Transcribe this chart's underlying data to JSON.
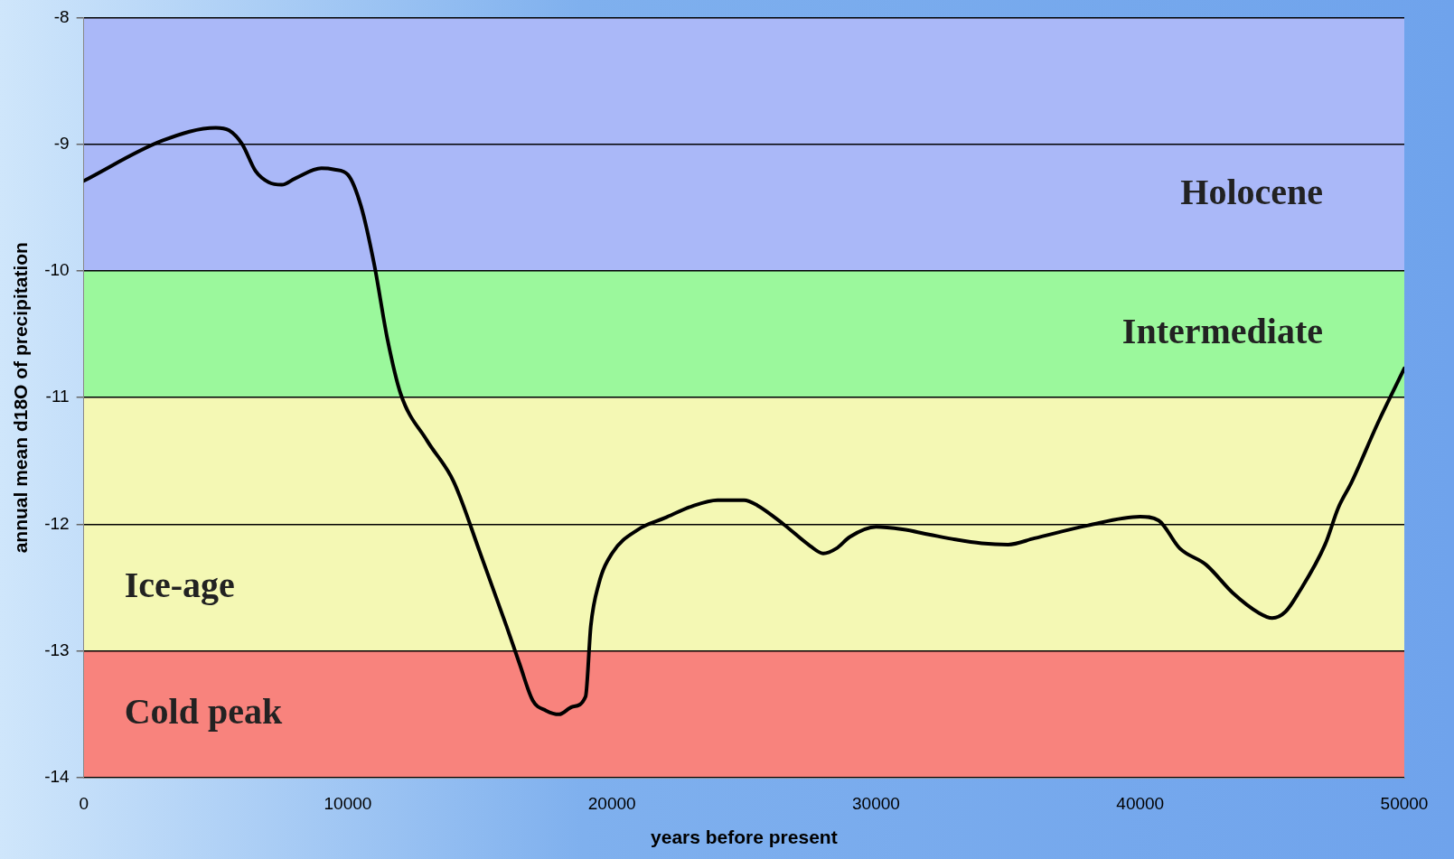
{
  "chart_data": {
    "type": "line",
    "xlabel": "years before present",
    "ylabel": "annual mean d18O of precipitation",
    "xlim": [
      0,
      50000
    ],
    "xticks": [
      0,
      10000,
      20000,
      30000,
      40000,
      50000
    ],
    "ylim": [
      -14,
      -8
    ],
    "yticks": [
      -14,
      -13,
      -12,
      -11,
      -10,
      -9,
      -8
    ],
    "grid": "y",
    "legend": false,
    "bands": [
      {
        "axis": "y",
        "from": -10,
        "to": -8,
        "label": "Holocene",
        "color": "#aab8f8"
      },
      {
        "axis": "y",
        "from": -11,
        "to": -10,
        "label": "Intermediate",
        "color": "#9bf89c"
      },
      {
        "axis": "y",
        "from": -13,
        "to": -11,
        "label": "Ice-age",
        "color": "#f4f8b4"
      },
      {
        "axis": "y",
        "from": -14,
        "to": -13,
        "label": "Cold peak",
        "color": "#f8837d"
      }
    ],
    "series": [
      {
        "color": "#000000",
        "x": [
          0,
          3000,
          5000,
          5500,
          6000,
          6500,
          7000,
          7500,
          8000,
          9000,
          9500,
          10000,
          10500,
          11000,
          11500,
          12000,
          13000,
          14000,
          15000,
          16000,
          16500,
          17000,
          17500,
          18000,
          18500,
          19000,
          19200,
          19500,
          20000,
          21000,
          22000,
          23000,
          24000,
          25000,
          25500,
          26500,
          27500,
          28000,
          28500,
          29000,
          30000,
          31000,
          32000,
          33000,
          34000,
          35000,
          36000,
          38000,
          40000,
          40700,
          41500,
          42500,
          43500,
          44500,
          45000,
          45500,
          46000,
          47000,
          47500,
          48000,
          49000,
          50000
        ],
        "values": [
          -9.29,
          -8.97,
          -8.87,
          -8.89,
          -9.0,
          -9.21,
          -9.3,
          -9.32,
          -9.27,
          -9.19,
          -9.2,
          -9.24,
          -9.49,
          -9.95,
          -10.54,
          -10.97,
          -11.34,
          -11.66,
          -12.22,
          -12.8,
          -13.1,
          -13.39,
          -13.47,
          -13.5,
          -13.44,
          -13.36,
          -12.8,
          -12.47,
          -12.23,
          -12.04,
          -11.95,
          -11.86,
          -11.81,
          -11.81,
          -11.85,
          -12.0,
          -12.17,
          -12.23,
          -12.19,
          -12.1,
          -12.02,
          -12.04,
          -12.08,
          -12.12,
          -12.15,
          -12.16,
          -12.11,
          -12.01,
          -11.94,
          -11.97,
          -12.19,
          -12.32,
          -12.54,
          -12.7,
          -12.74,
          -12.69,
          -12.54,
          -12.16,
          -11.87,
          -11.67,
          -11.2,
          -10.77
        ]
      }
    ]
  }
}
